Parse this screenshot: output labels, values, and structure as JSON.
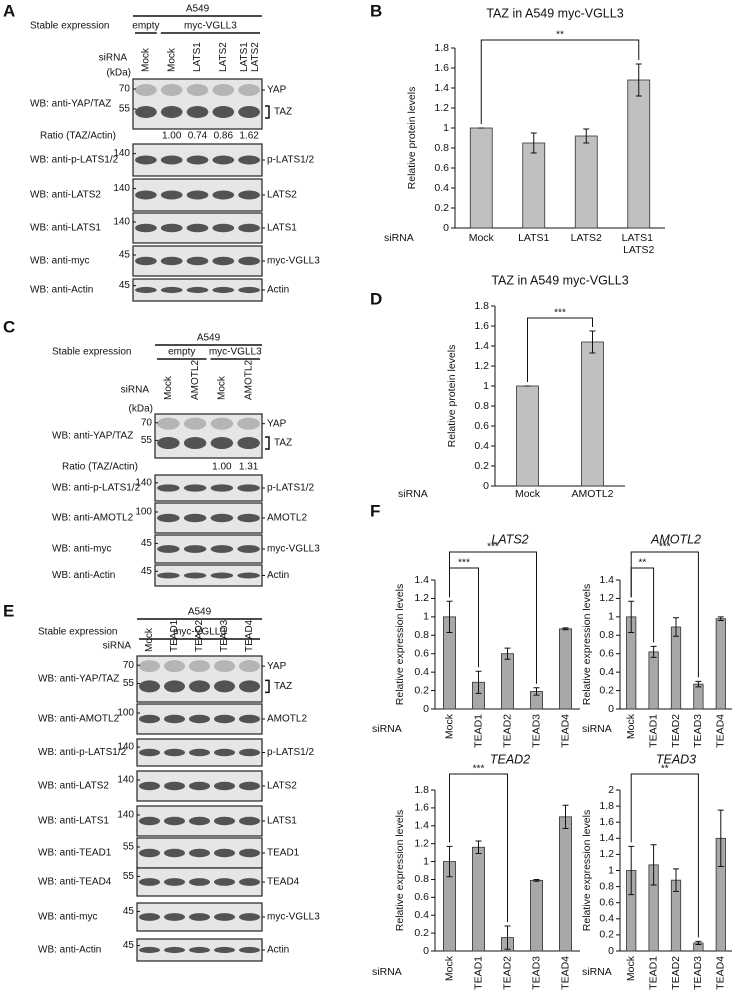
{
  "panel_labels": [
    "A",
    "B",
    "C",
    "D",
    "E",
    "F"
  ],
  "blots": {
    "A": {
      "title": "A549",
      "stable_label": "Stable expression",
      "groups": [
        {
          "name": "empty",
          "lanes": 1
        },
        {
          "name": "myc-VGLL3",
          "lanes": 4
        }
      ],
      "sirna_label": "siRNA",
      "lanes": [
        "Mock",
        "Mock",
        "LATS1",
        "LATS2",
        "LATS1 LATS2"
      ],
      "kda_label": "(kDa)",
      "ratio_label": "Ratio (TAZ/Actin)",
      "ratios": [
        null,
        "1.00",
        "0.74",
        "0.86",
        "1.62"
      ],
      "rows": [
        {
          "label": "WB: anti-YAP/TAZ",
          "markers": [
            "70",
            "55"
          ],
          "bands": [
            "YAP",
            "TAZ"
          ]
        },
        {
          "label": "WB: anti-p-LATS1/2",
          "markers": [
            "140"
          ],
          "bands": [
            "p-LATS1/2"
          ]
        },
        {
          "label": "WB: anti-LATS2",
          "markers": [
            "140"
          ],
          "bands": [
            "LATS2"
          ]
        },
        {
          "label": "WB: anti-LATS1",
          "markers": [
            "140"
          ],
          "bands": [
            "LATS1"
          ]
        },
        {
          "label": "WB: anti-myc",
          "markers": [
            "45"
          ],
          "bands": [
            "myc-VGLL3"
          ]
        },
        {
          "label": "WB: anti-Actin",
          "markers": [
            "45"
          ],
          "bands": [
            "Actin"
          ]
        }
      ]
    },
    "C": {
      "title": "A549",
      "stable_label": "Stable expression",
      "groups": [
        {
          "name": "empty",
          "lanes": 2
        },
        {
          "name": "myc-VGLL3",
          "lanes": 2
        }
      ],
      "sirna_label": "siRNA",
      "lanes": [
        "Mock",
        "AMOTL2",
        "Mock",
        "AMOTL2"
      ],
      "kda_label": "(kDa)",
      "ratio_label": "Ratio (TAZ/Actin)",
      "ratios": [
        null,
        null,
        "1.00",
        "1.31"
      ],
      "rows": [
        {
          "label": "WB: anti-YAP/TAZ",
          "markers": [
            "70",
            "55"
          ],
          "bands": [
            "YAP",
            "TAZ"
          ]
        },
        {
          "label": "WB: anti-p-LATS1/2",
          "markers": [
            "140"
          ],
          "bands": [
            "p-LATS1/2"
          ]
        },
        {
          "label": "WB: anti-AMOTL2",
          "markers": [
            "100"
          ],
          "bands": [
            "AMOTL2"
          ]
        },
        {
          "label": "WB: anti-myc",
          "markers": [
            "45"
          ],
          "bands": [
            "myc-VGLL3"
          ]
        },
        {
          "label": "WB: anti-Actin",
          "markers": [
            "45"
          ],
          "bands": [
            "Actin"
          ]
        }
      ]
    },
    "E": {
      "title": "A549",
      "stable_label": "Stable expression",
      "groups": [
        {
          "name": "myc-VGLL3",
          "lanes": 5
        }
      ],
      "sirna_label": "siRNA",
      "lanes": [
        "Mock",
        "TEAD1",
        "TEAD2",
        "TEAD3",
        "TEAD4"
      ],
      "rows": [
        {
          "label": "WB: anti-YAP/TAZ",
          "markers": [
            "70",
            "55"
          ],
          "bands": [
            "YAP",
            "TAZ"
          ]
        },
        {
          "label": "WB: anti-AMOTL2",
          "markers": [
            "100"
          ],
          "bands": [
            "AMOTL2"
          ]
        },
        {
          "label": "WB: anti-p-LATS1/2",
          "markers": [
            "140"
          ],
          "bands": [
            "p-LATS1/2"
          ]
        },
        {
          "label": "WB: anti-LATS2",
          "markers": [
            "140"
          ],
          "bands": [
            "LATS2"
          ]
        },
        {
          "label": "WB: anti-LATS1",
          "markers": [
            "140"
          ],
          "bands": [
            "LATS1"
          ]
        },
        {
          "label": "WB: anti-TEAD1",
          "markers": [
            "55"
          ],
          "bands": [
            "TEAD1"
          ]
        },
        {
          "label": "WB: anti-TEAD4",
          "markers": [
            "55"
          ],
          "bands": [
            "TEAD4"
          ]
        },
        {
          "label": "WB: anti-myc",
          "markers": [
            "45"
          ],
          "bands": [
            "myc-VGLL3"
          ]
        },
        {
          "label": "WB: anti-Actin",
          "markers": [
            "45"
          ],
          "bands": [
            "Actin"
          ]
        }
      ]
    }
  },
  "chart_data": [
    {
      "type": "bar",
      "title": "TAZ in A549 myc-VGLL3",
      "y_label": "Relative protein levels",
      "x_label": "siRNA",
      "categories": [
        "Mock",
        "LATS1",
        "LATS2",
        "LATS1 LATS2"
      ],
      "values": [
        1,
        0.85,
        0.92,
        1.48
      ],
      "errors": [
        0,
        0.1,
        0.07,
        0.16
      ],
      "color": "#c0c0c0",
      "ylim": [
        0,
        1.8
      ],
      "yticks": [
        0,
        0.2,
        0.4,
        0.6,
        0.8,
        1,
        1.2,
        1.4,
        1.6,
        1.8
      ],
      "significance": [
        {
          "label": "**",
          "between": [
            "Mock",
            "LATS1 LATS2"
          ]
        }
      ]
    },
    {
      "type": "bar",
      "title": "TAZ in A549 myc-VGLL3",
      "y_label": "Relative protein levels",
      "x_label": "siRNA",
      "categories": [
        "Mock",
        "AMOTL2"
      ],
      "values": [
        1,
        1.44
      ],
      "errors": [
        0,
        0.11
      ],
      "color": "#c0c0c0",
      "ylim": [
        0,
        1.8
      ],
      "yticks": [
        0,
        0.2,
        0.4,
        0.6,
        0.8,
        1,
        1.2,
        1.4,
        1.6,
        1.8
      ],
      "significance": [
        {
          "label": "***",
          "between": [
            "Mock",
            "AMOTL2"
          ]
        }
      ]
    },
    {
      "type": "bar",
      "title": "LATS2",
      "title_italic": true,
      "y_label": "Relative expression levels",
      "x_label": "siRNA",
      "categories": [
        "Mock",
        "TEAD1",
        "TEAD2",
        "TEAD3",
        "TEAD4"
      ],
      "values": [
        1,
        0.29,
        0.6,
        0.19,
        0.87
      ],
      "errors": [
        0.17,
        0.12,
        0.06,
        0.04,
        0.01
      ],
      "color": "#a8a8a8",
      "ylim": [
        0,
        1.4
      ],
      "yticks": [
        0,
        0.2,
        0.4,
        0.6,
        0.8,
        1,
        1.2,
        1.4
      ],
      "significance": [
        {
          "label": "***",
          "between": [
            "Mock",
            "TEAD1"
          ]
        },
        {
          "label": "***",
          "between": [
            "Mock",
            "TEAD3"
          ]
        }
      ]
    },
    {
      "type": "bar",
      "title": "AMOTL2",
      "title_italic": true,
      "y_label": "Relative expression levels",
      "x_label": "siRNA",
      "categories": [
        "Mock",
        "TEAD1",
        "TEAD2",
        "TEAD3",
        "TEAD4"
      ],
      "values": [
        1,
        0.62,
        0.89,
        0.27,
        0.98
      ],
      "errors": [
        0.17,
        0.06,
        0.1,
        0.03,
        0.02
      ],
      "color": "#a8a8a8",
      "ylim": [
        0,
        1.4
      ],
      "yticks": [
        0,
        0.2,
        0.4,
        0.6,
        0.8,
        1,
        1.2,
        1.4
      ],
      "significance": [
        {
          "label": "**",
          "between": [
            "Mock",
            "TEAD1"
          ]
        },
        {
          "label": "***",
          "between": [
            "Mock",
            "TEAD3"
          ]
        }
      ]
    },
    {
      "type": "bar",
      "title": "TEAD2",
      "title_italic": true,
      "y_label": "Relative expression levels",
      "x_label": "siRNA",
      "categories": [
        "Mock",
        "TEAD1",
        "TEAD2",
        "TEAD3",
        "TEAD4"
      ],
      "values": [
        1,
        1.16,
        0.15,
        0.79,
        1.5
      ],
      "errors": [
        0.17,
        0.07,
        0.13,
        0.01,
        0.13
      ],
      "color": "#a8a8a8",
      "ylim": [
        0,
        1.8
      ],
      "yticks": [
        0,
        0.2,
        0.4,
        0.6,
        0.8,
        1,
        1.2,
        1.4,
        1.6,
        1.8
      ],
      "significance": [
        {
          "label": "***",
          "between": [
            "Mock",
            "TEAD2"
          ]
        }
      ]
    },
    {
      "type": "bar",
      "title": "TEAD3",
      "title_italic": true,
      "y_label": "Relative expression levels",
      "x_label": "siRNA",
      "categories": [
        "Mock",
        "TEAD1",
        "TEAD2",
        "TEAD3",
        "TEAD4"
      ],
      "values": [
        1,
        1.07,
        0.88,
        0.1,
        1.4
      ],
      "errors": [
        0.3,
        0.25,
        0.14,
        0.02,
        0.35
      ],
      "color": "#a8a8a8",
      "ylim": [
        0,
        2
      ],
      "yticks": [
        0,
        0.2,
        0.4,
        0.6,
        0.8,
        1,
        1.2,
        1.4,
        1.6,
        1.8,
        2
      ],
      "significance": [
        {
          "label": "**",
          "between": [
            "Mock",
            "TEAD3"
          ]
        }
      ]
    }
  ]
}
